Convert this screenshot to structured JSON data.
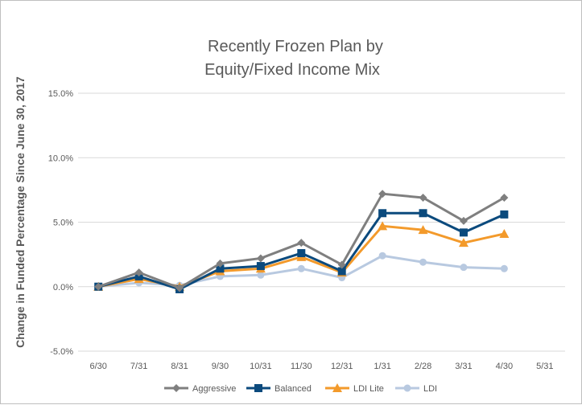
{
  "chart_data": {
    "type": "line",
    "title_lines": [
      "Recently Frozen Plan by",
      "Equity/Fixed Income Mix"
    ],
    "xlabel": "",
    "ylabel": "Change in Funded Percentage Since June 30, 2017",
    "categories": [
      "6/30",
      "7/31",
      "8/31",
      "9/30",
      "10/31",
      "11/30",
      "12/31",
      "1/31",
      "2/28",
      "3/31",
      "4/30",
      "5/31"
    ],
    "ylim": [
      -5.0,
      15.0
    ],
    "yticks": [
      -5.0,
      0.0,
      5.0,
      10.0,
      15.0
    ],
    "ytick_labels": [
      "-5.0%",
      "0.0%",
      "5.0%",
      "10.0%",
      "15.0%"
    ],
    "grid": true,
    "legend_position": "bottom",
    "series": [
      {
        "name": "Aggressive",
        "color": "#7f7f7f",
        "marker": "diamond",
        "values": [
          0.0,
          1.1,
          -0.1,
          1.8,
          2.2,
          3.4,
          1.7,
          7.2,
          6.9,
          5.1,
          6.9,
          null
        ]
      },
      {
        "name": "Balanced",
        "color": "#0b4a7d",
        "marker": "square",
        "values": [
          0.0,
          0.8,
          -0.2,
          1.4,
          1.6,
          2.6,
          1.2,
          5.7,
          5.7,
          4.2,
          5.6,
          null
        ]
      },
      {
        "name": "LDI Lite",
        "color": "#f39a2b",
        "marker": "triangle",
        "values": [
          0.0,
          0.6,
          0.0,
          1.2,
          1.4,
          2.3,
          1.1,
          4.7,
          4.4,
          3.4,
          4.1,
          null
        ]
      },
      {
        "name": "LDI",
        "color": "#b8c9e0",
        "marker": "circle",
        "values": [
          0.0,
          0.3,
          0.1,
          0.8,
          0.9,
          1.4,
          0.7,
          2.4,
          1.9,
          1.5,
          1.4,
          null
        ]
      }
    ]
  }
}
